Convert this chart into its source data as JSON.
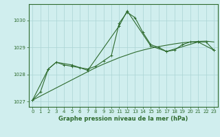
{
  "x": [
    0,
    1,
    2,
    3,
    4,
    5,
    6,
    7,
    8,
    9,
    10,
    11,
    12,
    13,
    14,
    15,
    16,
    17,
    18,
    19,
    20,
    21,
    22,
    23
  ],
  "line1": [
    1027.05,
    1027.35,
    1028.2,
    1028.45,
    1028.35,
    1028.3,
    1028.25,
    1028.2,
    1028.3,
    1028.5,
    1028.7,
    1029.9,
    1030.3,
    1030.1,
    1029.55,
    1029.1,
    1029.0,
    1028.85,
    1028.9,
    1029.1,
    1029.2,
    1029.2,
    1029.2,
    1028.9
  ],
  "line2": [
    1027.05,
    null,
    1028.2,
    1028.45,
    null,
    1028.35,
    null,
    1028.15,
    null,
    null,
    null,
    1029.8,
    1030.35,
    null,
    null,
    1029.05,
    null,
    1028.85,
    null,
    null,
    null,
    1029.2,
    null,
    1028.9
  ],
  "linear_fit": [
    1027.05,
    1027.2,
    1027.35,
    1027.5,
    1027.65,
    1027.8,
    1027.95,
    1028.1,
    1028.25,
    1028.38,
    1028.5,
    1028.62,
    1028.72,
    1028.82,
    1028.9,
    1028.97,
    1029.03,
    1029.08,
    1029.13,
    1029.17,
    1029.2,
    1029.22,
    1029.23,
    1029.2
  ],
  "line_color": "#2d6a2d",
  "bg_color": "#d0eeee",
  "grid_color": "#aad4d4",
  "xlabel": "Graphe pression niveau de la mer (hPa)",
  "ylim": [
    1026.8,
    1030.6
  ],
  "xlim": [
    -0.5,
    23.5
  ],
  "yticks": [
    1027,
    1028,
    1029,
    1030
  ],
  "xticks": [
    0,
    1,
    2,
    3,
    4,
    5,
    6,
    7,
    8,
    9,
    10,
    11,
    12,
    13,
    14,
    15,
    16,
    17,
    18,
    19,
    20,
    21,
    22,
    23
  ],
  "tick_fontsize": 5.0,
  "xlabel_fontsize": 6.0
}
